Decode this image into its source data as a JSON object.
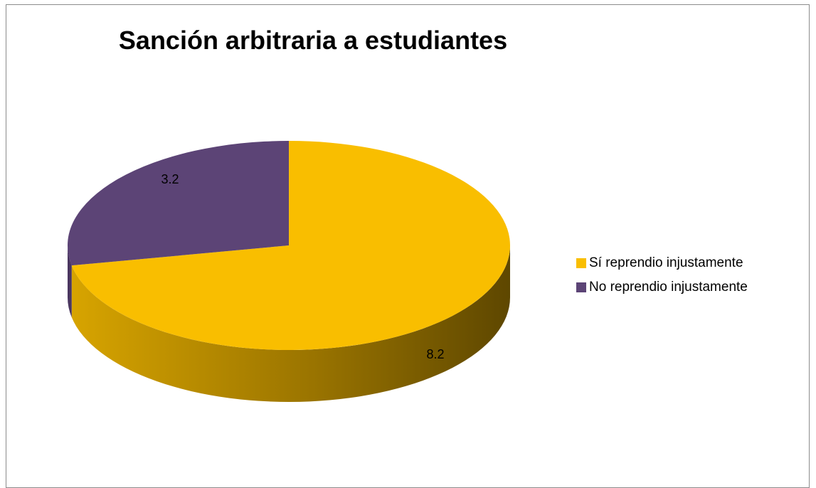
{
  "chart_data": {
    "type": "pie",
    "title": "Sanción arbitraria a estudiantes",
    "categories": [
      "Sí reprendio injustamente",
      "No reprendio injustamente"
    ],
    "values": [
      8.2,
      3.2
    ],
    "data_labels": [
      "8.2",
      "3.2"
    ],
    "colors": [
      "#F9BE00",
      "#5C4476"
    ],
    "side_colors": [
      "#C79800",
      "#4A3660"
    ],
    "three_d": true,
    "legend_position": "right"
  }
}
